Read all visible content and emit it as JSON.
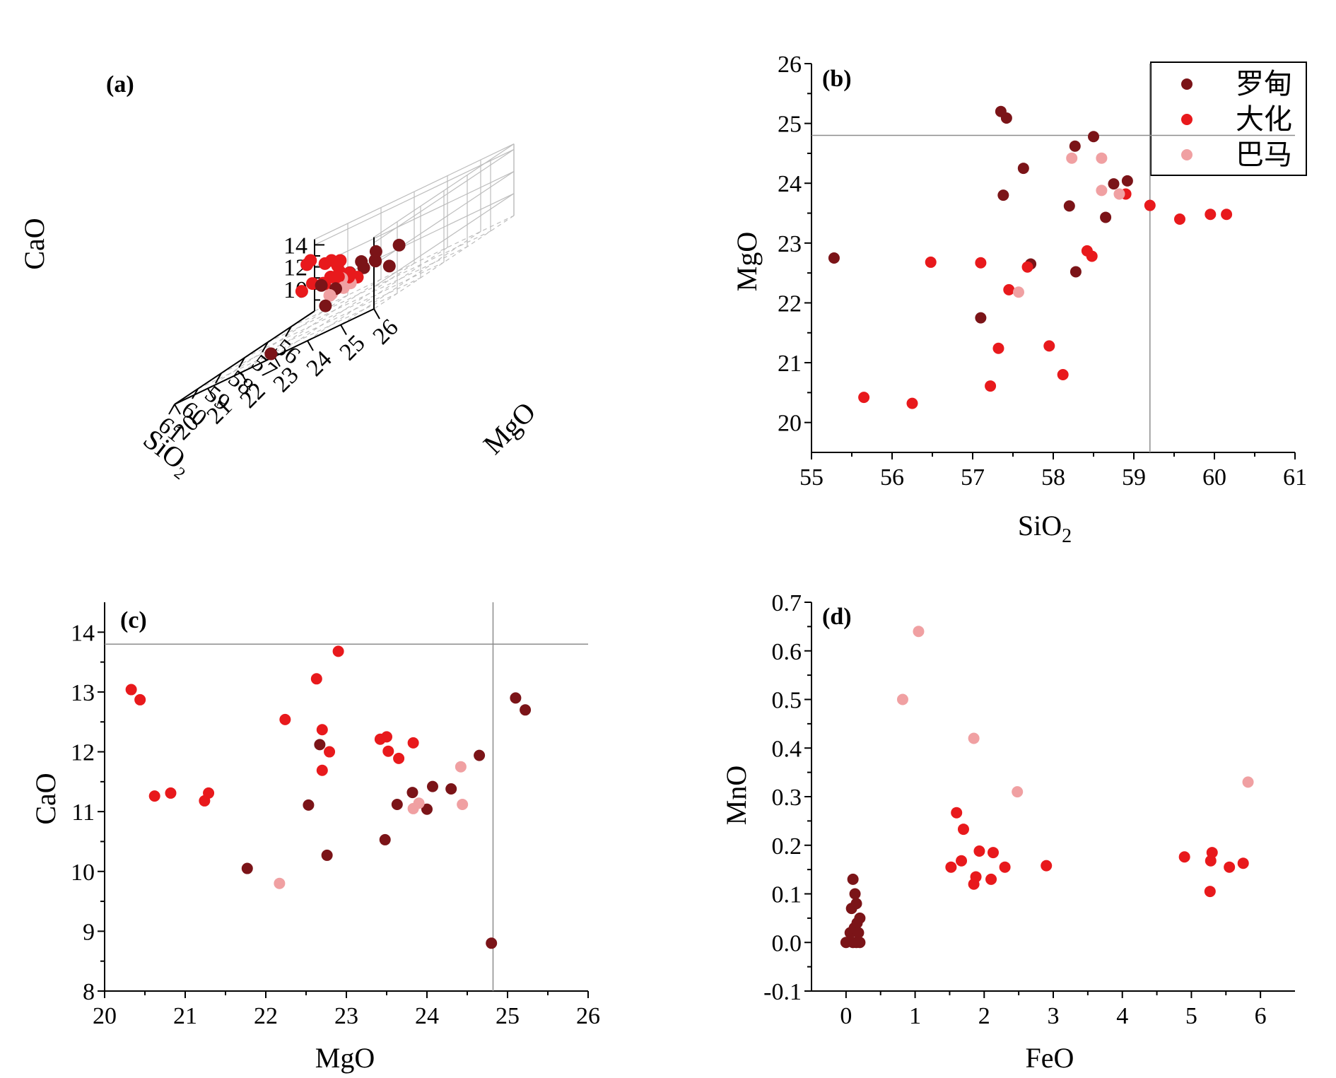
{
  "colors": {
    "luodian": "#7b1418",
    "dahua": "#e8191c",
    "bama": "#f0a0a2",
    "axis": "#000000",
    "grid": "#bdbdbd",
    "refline": "#8c8c8c"
  },
  "legend": {
    "items": [
      {
        "label": "罗甸",
        "key": "luodian"
      },
      {
        "label": "大化",
        "key": "dahua"
      },
      {
        "label": "巴马",
        "key": "bama"
      }
    ]
  },
  "chart_data": [
    {
      "panel": "(a)",
      "type": "scatter",
      "projection": "3d",
      "xlabel": "SiO₂",
      "ylabel": "MgO",
      "zlabel": "CaO",
      "xlim": [
        55,
        61
      ],
      "ylim": [
        20,
        26
      ],
      "zlim": [
        8,
        14.5
      ],
      "xticks": [
        "56",
        "57",
        "58",
        "59",
        "60",
        "61"
      ],
      "yticks": [
        "20",
        "21",
        "22",
        "23",
        "24",
        "25",
        "26"
      ],
      "zticks": [
        "10",
        "12",
        "14"
      ],
      "series": [
        {
          "key": "luodian",
          "points": [
            [
              56.9,
              22.1,
              10.1
            ],
            [
              57.7,
              22.1,
              11.1
            ],
            [
              58.1,
              24.0,
              11.2
            ],
            [
              57.5,
              24.3,
              11.3
            ],
            [
              58.9,
              23.8,
              11.5
            ],
            [
              59.2,
              25.2,
              10.5
            ],
            [
              59.3,
              24.5,
              11.5
            ],
            [
              60.2,
              25.5,
              12.8
            ],
            [
              60.4,
              25.2,
              12.6
            ],
            [
              60.8,
              24.4,
              10.3
            ],
            [
              60.5,
              24.5,
              11.3
            ],
            [
              57.8,
              23.8,
              11.0
            ],
            [
              61.0,
              22.9,
              8.4
            ]
          ]
        },
        {
          "key": "dahua",
          "points": [
            [
              55.6,
              20.3,
              13.0
            ],
            [
              55.9,
              20.4,
              12.9
            ],
            [
              56.8,
              21.2,
              11.3
            ],
            [
              57.4,
              21.3,
              11.3
            ],
            [
              57.7,
              22.2,
              11.1
            ],
            [
              57.9,
              22.3,
              11.3
            ],
            [
              57.6,
              22.6,
              12.5
            ],
            [
              58.0,
              22.8,
              12.3
            ],
            [
              58.3,
              22.8,
              11.7
            ],
            [
              58.4,
              22.7,
              13.2
            ],
            [
              59.4,
              23.6,
              13.6
            ],
            [
              58.9,
              23.5,
              12.0
            ],
            [
              60.0,
              24.1,
              12.2
            ],
            [
              60.1,
              24.3,
              12.1
            ],
            [
              60.0,
              24.6,
              11.7
            ],
            [
              60.2,
              24.7,
              12.0
            ],
            [
              60.8,
              25.1,
              11.9
            ],
            [
              61.0,
              25.5,
              11.6
            ]
          ]
        },
        {
          "key": "bama",
          "points": [
            [
              57.4,
              22.2,
              9.8
            ],
            [
              60.1,
              24.4,
              11.8
            ],
            [
              60.3,
              24.8,
              11.1
            ],
            [
              60.6,
              24.8,
              11.1
            ],
            [
              60.9,
              24.6,
              11.1
            ]
          ]
        }
      ]
    },
    {
      "panel": "(b)",
      "type": "scatter",
      "xlabel": "SiO",
      "xlabel_sub": "2",
      "ylabel": "MgO",
      "xlim": [
        55,
        61
      ],
      "ylim": [
        19.5,
        26
      ],
      "xticks": [
        "55",
        "56",
        "57",
        "58",
        "59",
        "60",
        "61"
      ],
      "yticks": [
        "20",
        "21",
        "22",
        "23",
        "24",
        "25",
        "26"
      ],
      "reference": {
        "x": 59.2,
        "y": 24.8
      },
      "series": [
        {
          "key": "luodian",
          "points": [
            [
              55.28,
              22.75
            ],
            [
              57.35,
              25.2
            ],
            [
              57.42,
              25.09
            ],
            [
              57.38,
              23.8
            ],
            [
              57.63,
              24.25
            ],
            [
              57.1,
              21.75
            ],
            [
              57.72,
              22.65
            ],
            [
              58.2,
              23.62
            ],
            [
              58.27,
              24.62
            ],
            [
              58.28,
              22.52
            ],
            [
              58.5,
              24.78
            ],
            [
              58.65,
              23.43
            ],
            [
              58.75,
              23.99
            ],
            [
              58.92,
              24.04
            ]
          ]
        },
        {
          "key": "dahua",
          "points": [
            [
              55.65,
              20.42
            ],
            [
              56.25,
              20.32
            ],
            [
              56.48,
              22.68
            ],
            [
              57.1,
              22.67
            ],
            [
              57.22,
              20.61
            ],
            [
              57.32,
              21.24
            ],
            [
              57.45,
              22.22
            ],
            [
              57.68,
              22.6
            ],
            [
              57.95,
              21.28
            ],
            [
              58.12,
              20.8
            ],
            [
              58.42,
              22.87
            ],
            [
              58.48,
              22.78
            ],
            [
              58.9,
              23.82
            ],
            [
              59.2,
              23.63
            ],
            [
              59.57,
              23.4
            ],
            [
              59.95,
              23.48
            ],
            [
              60.15,
              23.48
            ]
          ]
        },
        {
          "key": "bama",
          "points": [
            [
              57.57,
              22.18
            ],
            [
              58.23,
              24.42
            ],
            [
              58.6,
              24.42
            ],
            [
              58.6,
              23.88
            ],
            [
              58.82,
              23.82
            ]
          ]
        }
      ]
    },
    {
      "panel": "(c)",
      "type": "scatter",
      "xlabel": "MgO",
      "ylabel": "CaO",
      "xlim": [
        20,
        26
      ],
      "ylim": [
        8,
        14.5
      ],
      "xticks": [
        "20",
        "21",
        "22",
        "23",
        "24",
        "25",
        "26"
      ],
      "yticks": [
        "8",
        "9",
        "10",
        "11",
        "12",
        "13",
        "14"
      ],
      "reference": {
        "x": 24.82,
        "y": 13.8
      },
      "series": [
        {
          "key": "luodian",
          "points": [
            [
              21.77,
              10.05
            ],
            [
              22.53,
              11.11
            ],
            [
              22.67,
              12.12
            ],
            [
              22.76,
              10.27
            ],
            [
              23.48,
              10.53
            ],
            [
              23.63,
              11.12
            ],
            [
              23.82,
              11.32
            ],
            [
              24.0,
              11.04
            ],
            [
              24.07,
              11.42
            ],
            [
              24.3,
              11.38
            ],
            [
              24.65,
              11.94
            ],
            [
              24.8,
              8.8
            ],
            [
              25.1,
              12.9
            ],
            [
              25.22,
              12.7
            ]
          ]
        },
        {
          "key": "dahua",
          "points": [
            [
              20.33,
              13.04
            ],
            [
              20.44,
              12.87
            ],
            [
              20.62,
              11.26
            ],
            [
              20.82,
              11.31
            ],
            [
              21.24,
              11.18
            ],
            [
              21.29,
              11.31
            ],
            [
              22.24,
              12.54
            ],
            [
              22.63,
              13.22
            ],
            [
              22.7,
              12.37
            ],
            [
              22.7,
              11.69
            ],
            [
              22.79,
              12.0
            ],
            [
              22.9,
              13.68
            ],
            [
              23.42,
              12.21
            ],
            [
              23.5,
              12.25
            ],
            [
              23.52,
              12.01
            ],
            [
              23.65,
              11.89
            ],
            [
              23.83,
              12.15
            ]
          ]
        },
        {
          "key": "bama",
          "points": [
            [
              22.17,
              9.8
            ],
            [
              23.83,
              11.05
            ],
            [
              23.9,
              11.14
            ],
            [
              24.42,
              11.75
            ],
            [
              24.44,
              11.12
            ]
          ]
        }
      ]
    },
    {
      "panel": "(d)",
      "type": "scatter",
      "xlabel": "FeO",
      "ylabel": "MnO",
      "xlim": [
        -0.5,
        6.5
      ],
      "ylim": [
        -0.1,
        0.7
      ],
      "xticks": [
        "0",
        "1",
        "2",
        "3",
        "4",
        "5",
        "6"
      ],
      "yticks": [
        "-0.1",
        "0.0",
        "0.1",
        "0.2",
        "0.3",
        "0.4",
        "0.5",
        "0.6",
        "0.7"
      ],
      "series": [
        {
          "key": "luodian",
          "points": [
            [
              0.0,
              0.0
            ],
            [
              0.06,
              0.02
            ],
            [
              0.08,
              0.07
            ],
            [
              0.1,
              0.13
            ],
            [
              0.12,
              0.03
            ],
            [
              0.13,
              0.1
            ],
            [
              0.15,
              0.08
            ],
            [
              0.15,
              0.0
            ],
            [
              0.16,
              0.04
            ],
            [
              0.18,
              0.02
            ],
            [
              0.2,
              0.05
            ],
            [
              0.2,
              0.0
            ],
            [
              0.1,
              0.0
            ]
          ]
        },
        {
          "key": "dahua",
          "points": [
            [
              1.52,
              0.155
            ],
            [
              1.6,
              0.267
            ],
            [
              1.67,
              0.168
            ],
            [
              1.7,
              0.233
            ],
            [
              1.85,
              0.12
            ],
            [
              1.88,
              0.135
            ],
            [
              1.93,
              0.188
            ],
            [
              2.1,
              0.13
            ],
            [
              2.13,
              0.185
            ],
            [
              2.3,
              0.155
            ],
            [
              2.9,
              0.158
            ],
            [
              4.9,
              0.176
            ],
            [
              5.27,
              0.105
            ],
            [
              5.28,
              0.168
            ],
            [
              5.3,
              0.185
            ],
            [
              5.55,
              0.155
            ],
            [
              5.75,
              0.163
            ]
          ]
        },
        {
          "key": "bama",
          "points": [
            [
              0.82,
              0.5
            ],
            [
              1.05,
              0.64
            ],
            [
              1.85,
              0.42
            ],
            [
              2.48,
              0.31
            ],
            [
              5.82,
              0.33
            ]
          ]
        }
      ]
    }
  ]
}
